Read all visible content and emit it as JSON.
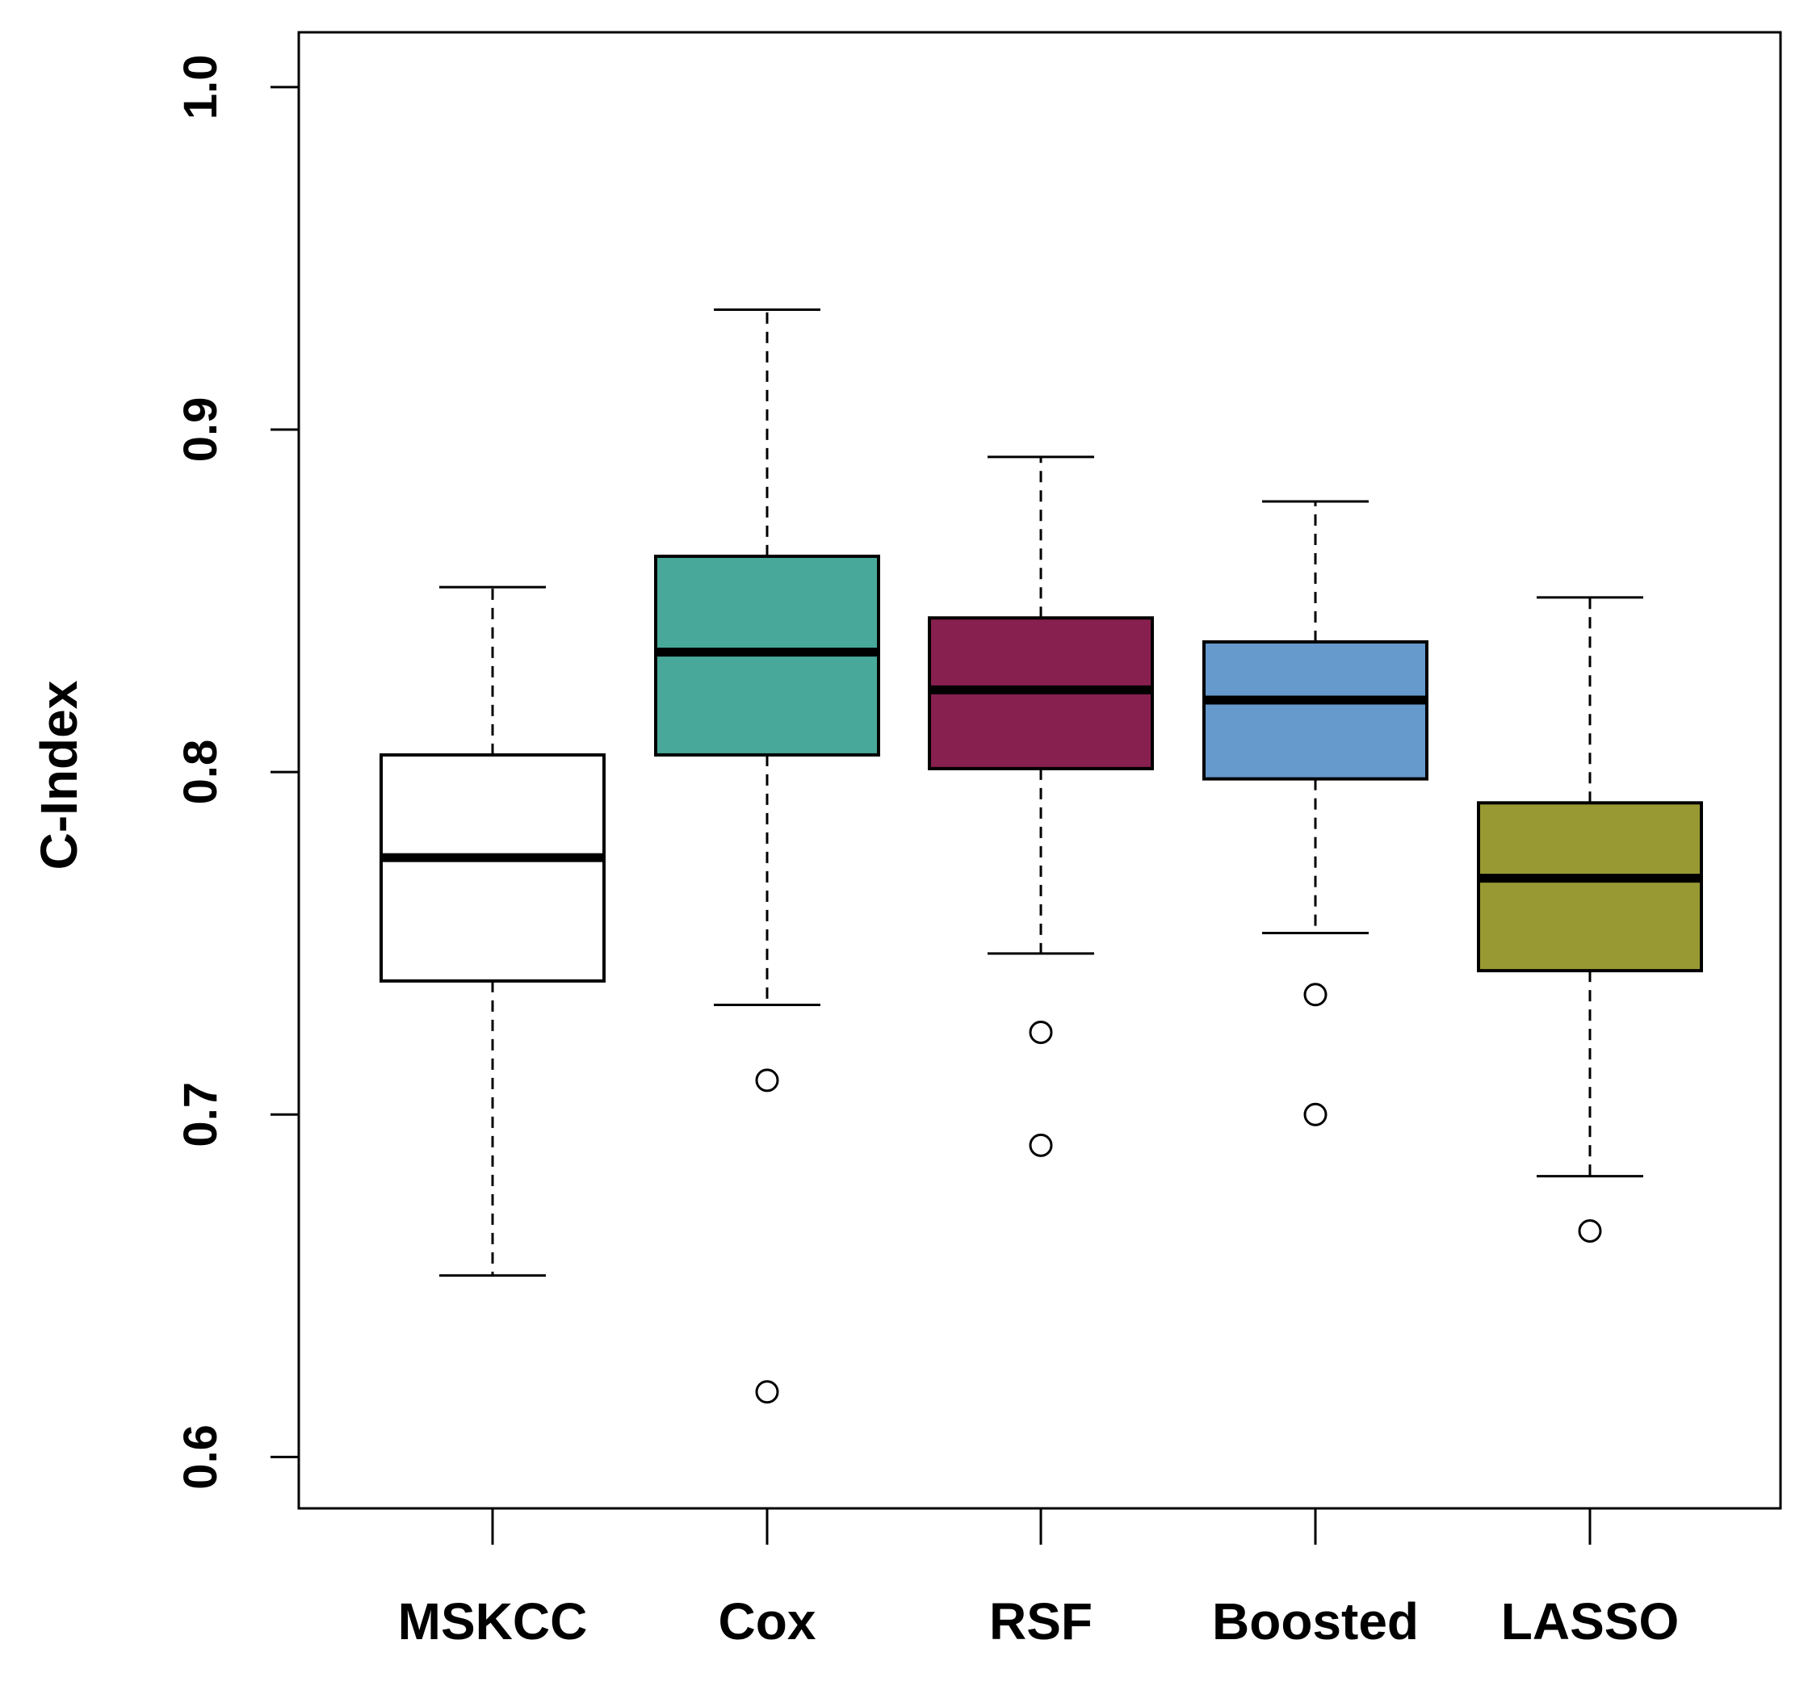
{
  "chart_data": {
    "type": "boxplot",
    "title": "",
    "xlabel": "",
    "ylabel": "C-Index",
    "ylim": [
      0.585,
      1.016
    ],
    "yticks": [
      "0.6",
      "0.7",
      "0.8",
      "0.9",
      "1.0"
    ],
    "grid": false,
    "categories": [
      "MSKCC",
      "Cox",
      "RSF",
      "Boosted",
      "LASSO"
    ],
    "boxes": [
      {
        "name": "MSKCC",
        "color": "#ffffff",
        "whisker_low": 0.653,
        "q1": 0.739,
        "median": 0.775,
        "q3": 0.805,
        "whisker_high": 0.854,
        "outliers": []
      },
      {
        "name": "Cox",
        "color": "#48a899",
        "whisker_low": 0.732,
        "q1": 0.805,
        "median": 0.835,
        "q3": 0.863,
        "whisker_high": 0.935,
        "outliers": [
          0.71,
          0.619
        ]
      },
      {
        "name": "RSF",
        "color": "#87204f",
        "whisker_low": 0.747,
        "q1": 0.801,
        "median": 0.824,
        "q3": 0.845,
        "whisker_high": 0.892,
        "outliers": [
          0.724,
          0.691
        ]
      },
      {
        "name": "Boosted",
        "color": "#6699cc",
        "whisker_low": 0.753,
        "q1": 0.798,
        "median": 0.821,
        "q3": 0.838,
        "whisker_high": 0.879,
        "outliers": [
          0.735,
          0.7
        ]
      },
      {
        "name": "LASSO",
        "color": "#999933",
        "whisker_low": 0.682,
        "q1": 0.742,
        "median": 0.769,
        "q3": 0.791,
        "whisker_high": 0.851,
        "outliers": [
          0.666
        ]
      }
    ]
  }
}
